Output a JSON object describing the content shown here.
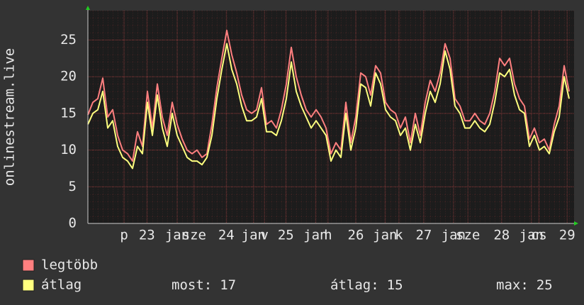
{
  "chart_data": {
    "type": "line",
    "y_label": "onlinestream.live",
    "xlim": [
      0,
      98
    ],
    "xticks": [
      {
        "value": 7.3,
        "label": "p"
      },
      {
        "value": 11.9,
        "label": "23"
      },
      {
        "value": 18.0,
        "label": "jan"
      },
      {
        "value": 21.4,
        "label": "sze"
      },
      {
        "value": 27.9,
        "label": "24"
      },
      {
        "value": 33.4,
        "label": "jan"
      },
      {
        "value": 35.6,
        "label": "v"
      },
      {
        "value": 39.9,
        "label": "25"
      },
      {
        "value": 45.9,
        "label": "jan"
      },
      {
        "value": 48.4,
        "label": "h"
      },
      {
        "value": 54.0,
        "label": "26"
      },
      {
        "value": 59.9,
        "label": "jan"
      },
      {
        "value": 62.7,
        "label": "k"
      },
      {
        "value": 67.7,
        "label": "27"
      },
      {
        "value": 73.7,
        "label": "jan"
      },
      {
        "value": 76.6,
        "label": "sze"
      },
      {
        "value": 83.4,
        "label": "28"
      },
      {
        "value": 89.4,
        "label": "jan"
      },
      {
        "value": 90.9,
        "label": "cs"
      },
      {
        "value": 96.6,
        "label": "29"
      }
    ],
    "ylim": [
      0,
      29
    ],
    "yticks": [
      0,
      5,
      10,
      15,
      20,
      25
    ],
    "grid": true,
    "series": [
      {
        "name": "legtöbb",
        "color": "#ff7f7f",
        "values": [
          14.8,
          16.5,
          17,
          19.8,
          14.5,
          15.5,
          12,
          10,
          9.5,
          8.5,
          12.5,
          10.5,
          18,
          13,
          19,
          14.5,
          12,
          16.5,
          13.5,
          11.5,
          10,
          9.5,
          10,
          9,
          9.5,
          13.5,
          18.5,
          22.5,
          26.3,
          23,
          20.5,
          17.5,
          15.5,
          15,
          15.5,
          18.5,
          13.5,
          14,
          13,
          15.5,
          19,
          24,
          20,
          17.5,
          15.5,
          14.5,
          15.5,
          14.5,
          13,
          9.5,
          11,
          10,
          16.5,
          11,
          14.5,
          20.5,
          20,
          17.5,
          21.5,
          20.5,
          16.5,
          15.5,
          15,
          13,
          14.5,
          11,
          15,
          12,
          16.5,
          19.5,
          18,
          20.5,
          24.5,
          22.5,
          17,
          16,
          14,
          14,
          15,
          14,
          13.5,
          15,
          18,
          22.5,
          21.5,
          22.5,
          19,
          17,
          16,
          11.5,
          13,
          11,
          11.5,
          10,
          13.5,
          16,
          21.5,
          18
        ]
      },
      {
        "name": "átlag",
        "color": "#ffff7f",
        "values": [
          13.5,
          15,
          15.5,
          18,
          13,
          14,
          10.5,
          9,
          8.5,
          7.5,
          10.5,
          9.5,
          16.5,
          12,
          17.5,
          13,
          10.5,
          15,
          12,
          10.5,
          9,
          8.5,
          8.5,
          8,
          9,
          12,
          17,
          21,
          24.5,
          21,
          19,
          16,
          14,
          14,
          14.5,
          17,
          12.5,
          12.5,
          12,
          14,
          17,
          22,
          18,
          16,
          14.5,
          13,
          14,
          13,
          12,
          8.5,
          10,
          9,
          15,
          10,
          13,
          19,
          18.5,
          16,
          20.5,
          19,
          15.5,
          14.5,
          14,
          12,
          13,
          10,
          13.5,
          11,
          15,
          18,
          16.5,
          19,
          23.5,
          21,
          16,
          15,
          13,
          13,
          14,
          13,
          12.5,
          13.5,
          16.5,
          20.5,
          20,
          21,
          17.5,
          15.5,
          15,
          10.5,
          12,
          10,
          10.5,
          9.5,
          12.5,
          14.5,
          20,
          17
        ]
      }
    ],
    "stats": [
      {
        "label": "most:",
        "value": 17
      },
      {
        "label": "átlag:",
        "value": 15
      },
      {
        "label": "max:",
        "value": 25
      }
    ]
  }
}
